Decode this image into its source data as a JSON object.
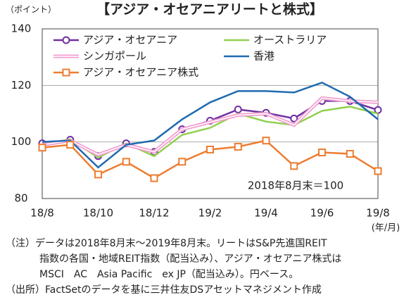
{
  "chart_data": {
    "type": "line",
    "title": "【アジア・オセアニアリートと株式】",
    "y_label": "（ポイント）",
    "x_unit": "(年/月)",
    "annotation": "2018年8月末＝100",
    "categories": [
      "18/8",
      null,
      "18/10",
      null,
      "18/12",
      null,
      "19/2",
      null,
      "19/4",
      null,
      "19/6",
      null,
      "19/8"
    ],
    "ylim": [
      80,
      140
    ],
    "yticks": [
      80,
      100,
      120,
      140
    ],
    "grid": true,
    "series": [
      {
        "name": "アジア・オセアニア",
        "color": "#7030a0",
        "marker": "circle",
        "values": [
          99.5,
          100.8,
          95,
          99.5,
          96.5,
          104.5,
          107.5,
          111.5,
          110.3,
          108.3,
          114.5,
          114.5,
          111.3
        ]
      },
      {
        "name": "オーストラリア",
        "color": "#92d050",
        "values": [
          99,
          101,
          94.5,
          99.5,
          95,
          102.5,
          105,
          110,
          107.2,
          106,
          111,
          112.5,
          110
        ]
      },
      {
        "name": "シンガポール",
        "color": "#f29fd0",
        "style": "double",
        "values": [
          99,
          100.5,
          95.5,
          99,
          96.5,
          104.5,
          107,
          109.5,
          110,
          106,
          115.5,
          114.5,
          114
        ]
      },
      {
        "name": "香港",
        "color": "#1f6bb0",
        "values": [
          100,
          100.5,
          91,
          99,
          100.5,
          108,
          114,
          118,
          118,
          117.5,
          121,
          116,
          108
        ]
      },
      {
        "name": "アジア・オセアニア株式",
        "color": "#ed7d31",
        "marker": "square",
        "values": [
          98,
          99,
          88.5,
          93,
          87.2,
          93,
          97.3,
          98.3,
          100.5,
          91.5,
          96.3,
          95.8,
          89.7
        ]
      }
    ],
    "notes": [
      "（注）データは2018年8月末～2019年8月末。リートはS&P先進国REIT",
      "指数の各国・地域REIT指数（配当込み）、アジア・オセアニア株式は",
      "MSCI　AC　Asia Pacific　ex JP（配当込み）。円ベース。",
      "（出所）FactSetのデータを基に三井住友DSアセットマネジメント作成"
    ]
  }
}
